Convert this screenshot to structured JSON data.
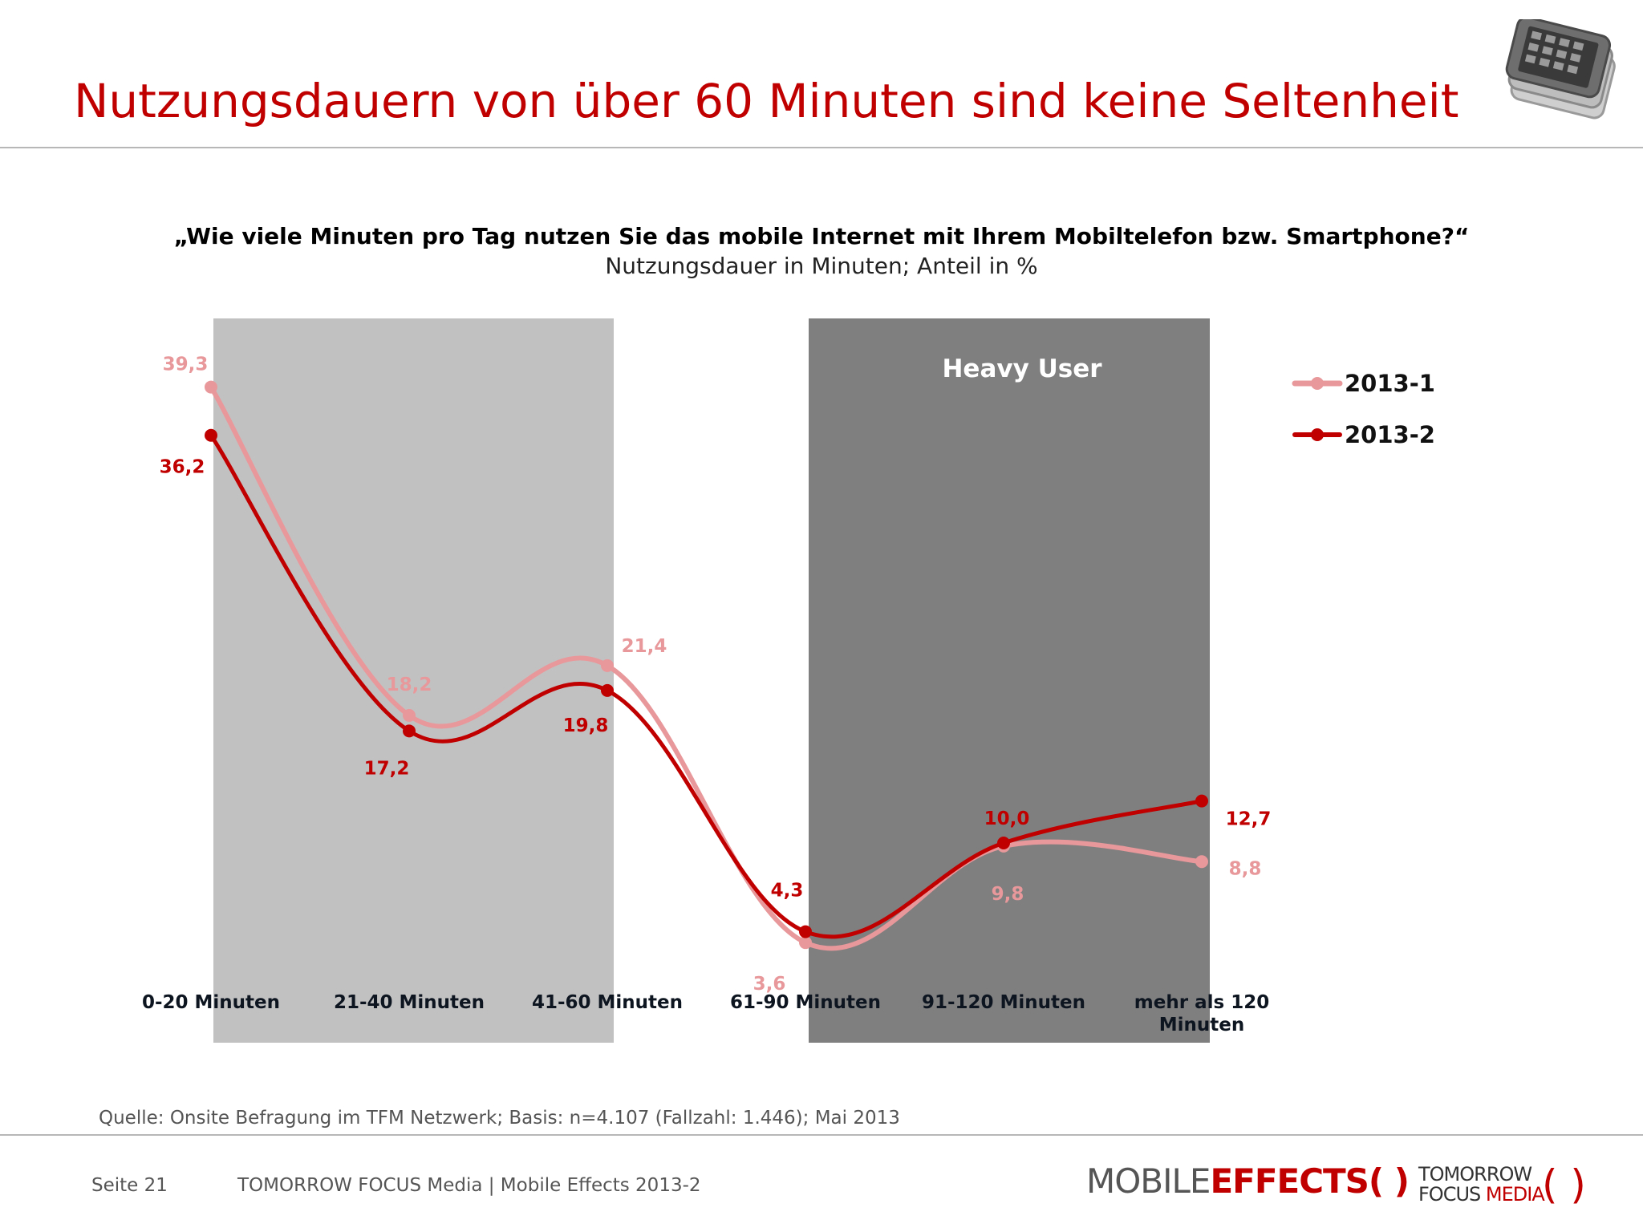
{
  "header": {
    "title": "Nutzungsdauern von über 60 Minuten sind keine Seltenheit"
  },
  "icons": {
    "header_icon": "smartphone-stack-icon"
  },
  "chart_data": {
    "type": "line",
    "title": "„Wie viele Minuten pro Tag nutzen Sie das mobile Internet mit Ihrem Mobiltelefon bzw. Smartphone?“",
    "subtitle": "Nutzungsdauer in Minuten; Anteil in %",
    "categories": [
      "0-20 Minuten",
      "21-40 Minuten",
      "41-60 Minuten",
      "61-90 Minuten",
      "91-120 Minuten",
      "mehr als 120 Minuten"
    ],
    "category_lines": [
      [
        "0-20 Minuten"
      ],
      [
        "21-40 Minuten"
      ],
      [
        "41-60 Minuten"
      ],
      [
        "61-90 Minuten"
      ],
      [
        "91-120 Minuten"
      ],
      [
        "mehr als 120",
        "Minuten"
      ]
    ],
    "series": [
      {
        "name": "2013-1",
        "values": [
          39.3,
          18.2,
          21.4,
          3.6,
          9.8,
          8.8
        ],
        "labels": [
          "39,3",
          "18,2",
          "21,4",
          "3,6",
          "9,8",
          "8,8"
        ],
        "color": "#e8989a"
      },
      {
        "name": "2013-2",
        "values": [
          36.2,
          17.2,
          19.8,
          4.3,
          10.0,
          12.7
        ],
        "labels": [
          "36,2",
          "17,2",
          "19,8",
          "4,3",
          "10,0",
          "12,7"
        ],
        "color": "#c00000"
      }
    ],
    "ylim": [
      0,
      45
    ],
    "shaded_bands": [
      {
        "from_category": 0,
        "to_category": 2,
        "color": "#c2c1c2",
        "label": ""
      },
      {
        "from_category": 3,
        "to_category": 5,
        "color": "#807f80",
        "label": "Heavy User"
      }
    ],
    "legend": {
      "placement": "right"
    },
    "grid": false
  },
  "footer": {
    "source": "Quelle: Onsite Befragung im TFM Netzwerk; Basis: n=4.107 (Fallzahl: 1.446); Mai 2013",
    "page": "Seite 21",
    "company": "TOMORROW FOCUS Media  |  Mobile Effects 2013-2",
    "logo_mobile": "MOBILE",
    "logo_effects": "EFFECTS",
    "logo_paren": "( )",
    "logo_tfm_1": "TOMORROW",
    "logo_tfm_2a": "FOCUS ",
    "logo_tfm_2b": "MEDIA",
    "logo_tfm_paren": "( )"
  }
}
